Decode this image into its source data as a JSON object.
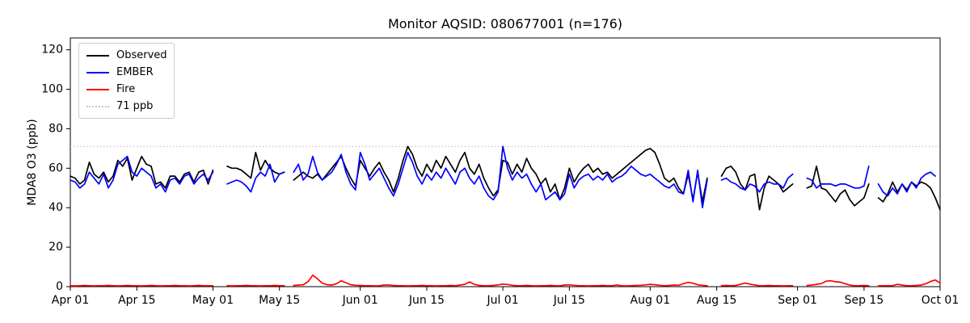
{
  "chart_data": {
    "type": "line",
    "title": "Monitor AQSID: 080677001 (n=176)",
    "xlabel": "",
    "ylabel": "MDA8 O3 (ppb)",
    "ylim": [
      0,
      126
    ],
    "y_ticks": [
      0,
      20,
      40,
      60,
      80,
      100,
      120
    ],
    "x_range_days": [
      0,
      183
    ],
    "x_ticks": [
      {
        "day": 0,
        "label": "Apr 01"
      },
      {
        "day": 14,
        "label": "Apr 15"
      },
      {
        "day": 30,
        "label": "May 01"
      },
      {
        "day": 44,
        "label": "May 15"
      },
      {
        "day": 61,
        "label": "Jun 01"
      },
      {
        "day": 75,
        "label": "Jun 15"
      },
      {
        "day": 91,
        "label": "Jul 01"
      },
      {
        "day": 105,
        "label": "Jul 15"
      },
      {
        "day": 122,
        "label": "Aug 01"
      },
      {
        "day": 136,
        "label": "Aug 15"
      },
      {
        "day": 153,
        "label": "Sep 01"
      },
      {
        "day": 167,
        "label": "Sep 15"
      },
      {
        "day": 183,
        "label": "Oct 01"
      }
    ],
    "grid": false,
    "legend_position": "upper left",
    "threshold": {
      "label": "71 ppb",
      "value": 71,
      "color": "#c9c9c9",
      "linestyle": "dotted"
    },
    "series": [
      {
        "name": "Observed",
        "color": "#000000",
        "values": [
          56,
          55,
          52,
          54,
          63,
          57,
          55,
          58,
          53,
          56,
          64,
          61,
          65,
          54,
          60,
          66,
          62,
          61,
          52,
          53,
          50,
          56,
          56,
          53,
          57,
          58,
          53,
          58,
          59,
          52,
          59,
          null,
          null,
          61,
          60,
          60,
          59,
          57,
          55,
          68,
          59,
          64,
          60,
          58,
          57,
          58,
          null,
          54,
          56,
          58,
          56,
          55,
          57,
          54,
          57,
          60,
          63,
          66,
          60,
          55,
          51,
          64,
          60,
          56,
          60,
          63,
          58,
          54,
          48,
          55,
          64,
          71,
          67,
          60,
          56,
          62,
          58,
          64,
          60,
          66,
          62,
          58,
          64,
          68,
          60,
          57,
          62,
          55,
          50,
          46,
          49,
          64,
          63,
          57,
          62,
          58,
          65,
          60,
          57,
          52,
          55,
          48,
          52,
          44,
          50,
          60,
          53,
          57,
          60,
          62,
          58,
          60,
          57,
          58,
          55,
          57,
          59,
          61,
          63,
          65,
          67,
          69,
          70,
          68,
          62,
          55,
          53,
          55,
          50,
          47,
          57,
          44,
          58,
          43,
          55,
          null,
          null,
          56,
          60,
          61,
          58,
          52,
          49,
          56,
          57,
          39,
          50,
          56,
          54,
          52,
          48,
          50,
          52,
          null,
          null,
          50,
          51,
          61,
          50,
          49,
          46,
          43,
          47,
          49,
          44,
          41,
          43,
          45,
          52,
          null,
          45,
          43,
          47,
          53,
          48,
          52,
          49,
          53,
          51,
          53,
          52,
          50,
          45,
          39
        ]
      },
      {
        "name": "EMBER",
        "color": "#0000ff",
        "values": [
          54,
          53,
          50,
          52,
          58,
          55,
          52,
          57,
          50,
          54,
          62,
          64,
          66,
          58,
          56,
          60,
          58,
          56,
          50,
          52,
          48,
          54,
          55,
          52,
          56,
          57,
          52,
          55,
          57,
          54,
          58,
          null,
          null,
          52,
          53,
          54,
          53,
          51,
          48,
          55,
          58,
          56,
          62,
          53,
          57,
          58,
          null,
          58,
          62,
          54,
          57,
          66,
          58,
          54,
          56,
          58,
          62,
          67,
          58,
          52,
          49,
          68,
          62,
          54,
          57,
          60,
          55,
          50,
          46,
          52,
          60,
          68,
          63,
          56,
          52,
          57,
          54,
          58,
          55,
          60,
          56,
          52,
          58,
          60,
          55,
          52,
          56,
          50,
          46,
          44,
          48,
          71,
          60,
          54,
          58,
          55,
          57,
          52,
          48,
          52,
          44,
          46,
          48,
          44,
          47,
          57,
          50,
          54,
          56,
          57,
          54,
          56,
          54,
          57,
          53,
          55,
          56,
          58,
          61,
          59,
          57,
          56,
          57,
          55,
          53,
          51,
          50,
          52,
          48,
          47,
          59,
          43,
          59,
          40,
          54,
          null,
          null,
          54,
          55,
          53,
          52,
          50,
          49,
          52,
          51,
          48,
          52,
          53,
          52,
          52,
          50,
          55,
          57,
          null,
          null,
          55,
          54,
          50,
          52,
          52,
          52,
          51,
          52,
          52,
          51,
          50,
          50,
          51,
          61,
          null,
          52,
          48,
          46,
          50,
          47,
          52,
          48,
          53,
          50,
          55,
          57,
          58,
          56,
          null
        ]
      },
      {
        "name": "Fire",
        "color": "#ff0000",
        "values": [
          0.5,
          0.4,
          0.5,
          0.6,
          0.5,
          0.4,
          0.5,
          0.5,
          0.6,
          0.5,
          0.4,
          0.5,
          0.6,
          0.5,
          0.5,
          0.4,
          0.5,
          0.6,
          0.5,
          0.4,
          0.5,
          0.5,
          0.6,
          0.5,
          0.5,
          0.4,
          0.5,
          0.6,
          0.5,
          0.5,
          0.5,
          null,
          null,
          0.5,
          0.4,
          0.5,
          0.5,
          0.6,
          0.5,
          0.5,
          0.4,
          0.5,
          0.5,
          0.6,
          0.5,
          0.5,
          null,
          0.6,
          0.8,
          1.0,
          2.5,
          5.8,
          4.0,
          1.8,
          1.0,
          0.8,
          1.5,
          3.0,
          2.0,
          1.0,
          0.7,
          0.6,
          0.5,
          0.5,
          0.4,
          0.5,
          0.8,
          0.8,
          0.6,
          0.5,
          0.5,
          0.4,
          0.5,
          0.5,
          0.6,
          0.5,
          0.5,
          0.4,
          0.5,
          0.5,
          0.6,
          0.5,
          0.8,
          1.2,
          2.4,
          1.2,
          0.6,
          0.5,
          0.5,
          0.6,
          0.9,
          1.3,
          1.1,
          0.7,
          0.5,
          0.5,
          0.6,
          0.5,
          0.4,
          0.5,
          0.5,
          0.6,
          0.5,
          0.4,
          0.8,
          0.9,
          0.7,
          0.5,
          0.5,
          0.4,
          0.5,
          0.5,
          0.6,
          0.5,
          0.5,
          0.8,
          0.5,
          0.4,
          0.5,
          0.6,
          0.7,
          0.9,
          1.2,
          1.0,
          0.7,
          0.5,
          0.6,
          0.8,
          0.7,
          1.5,
          2.2,
          1.7,
          1.0,
          0.7,
          0.5,
          null,
          null,
          0.5,
          0.6,
          0.5,
          0.6,
          1.2,
          1.8,
          1.3,
          0.8,
          0.5,
          0.5,
          0.6,
          0.5,
          0.5,
          0.4,
          0.5,
          0.5,
          null,
          null,
          0.6,
          0.8,
          1.2,
          1.5,
          2.8,
          3.0,
          2.5,
          2.3,
          1.5,
          0.8,
          0.5,
          0.5,
          0.6,
          0.5,
          null,
          0.4,
          0.5,
          0.5,
          0.5,
          1.2,
          0.8,
          0.5,
          0.5,
          0.6,
          0.8,
          1.5,
          2.6,
          3.4,
          1.8
        ]
      }
    ]
  }
}
